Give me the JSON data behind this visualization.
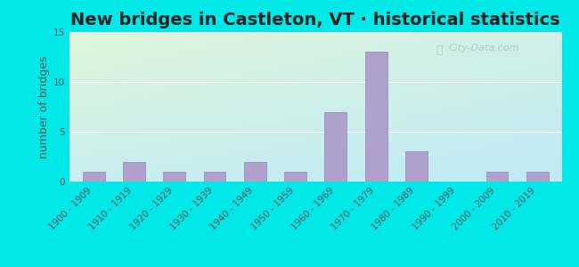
{
  "title": "New bridges in Castleton, VT · historical statistics",
  "ylabel": "number of bridges",
  "categories": [
    "1900 - 1909",
    "1910 - 1919",
    "1920 - 1929",
    "1930 - 1939",
    "1940 - 1949",
    "1950 - 1959",
    "1960 - 1969",
    "1970 - 1979",
    "1980 - 1989",
    "1990 - 1999",
    "2000 - 2009",
    "2010 - 2019"
  ],
  "values": [
    1,
    2,
    1,
    1,
    2,
    1,
    7,
    13,
    3,
    0,
    1,
    1
  ],
  "bar_color": "#b0a0cc",
  "bar_edge_color": "#9888bb",
  "ylim": [
    0,
    15
  ],
  "yticks": [
    0,
    5,
    10,
    15
  ],
  "bg_outer": "#00e8e8",
  "grid_color": "#ffffff",
  "title_fontsize": 14,
  "ylabel_fontsize": 9,
  "tick_fontsize": 7.5,
  "watermark_text": "City-Data.com"
}
